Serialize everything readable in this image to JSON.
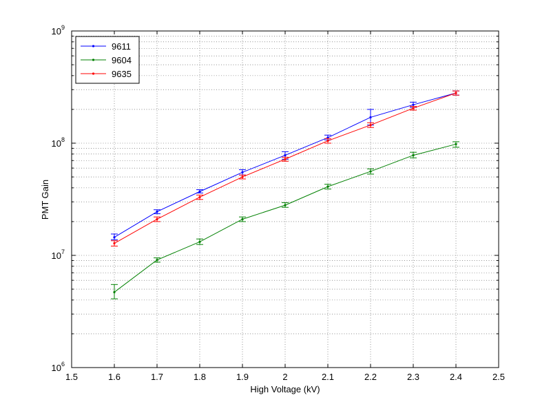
{
  "chart_data": {
    "type": "line",
    "xlabel": "High Voltage (kV)",
    "ylabel": "PMT Gain",
    "xlim": [
      1.5,
      2.5
    ],
    "ylim": [
      1000000,
      1000000000
    ],
    "y_scale": "log",
    "x_ticks": [
      "1.5",
      "1.6",
      "1.7",
      "1.8",
      "1.9",
      "2",
      "2.1",
      "2.2",
      "2.3",
      "2.4",
      "2.5"
    ],
    "y_ticks": [
      {
        "base": "10",
        "exp": "6"
      },
      {
        "base": "10",
        "exp": "7"
      },
      {
        "base": "10",
        "exp": "8"
      },
      {
        "base": "10",
        "exp": "9"
      }
    ],
    "grid": true,
    "legend_position": "top-left",
    "x": [
      1.6,
      1.7,
      1.8,
      1.9,
      2.0,
      2.1,
      2.2,
      2.3,
      2.4
    ],
    "series": [
      {
        "name": "9611",
        "color": "#0000ff",
        "values": [
          14500000,
          24500000,
          37000000,
          55000000,
          78000000,
          112000000,
          170000000,
          220000000,
          280000000
        ],
        "err_high": [
          15500000,
          25500000,
          38500000,
          58000000,
          84000000,
          118000000,
          200000000,
          232000000,
          292000000
        ],
        "err_low": [
          13800000,
          23500000,
          36000000,
          52000000,
          72000000,
          107000000,
          145000000,
          208000000,
          268000000
        ]
      },
      {
        "name": "9604",
        "color": "#008000",
        "values": [
          4700000,
          9100000,
          13200000,
          21000000,
          28000000,
          41000000,
          56000000,
          78000000,
          98000000
        ],
        "err_high": [
          5500000,
          9500000,
          14000000,
          22000000,
          29500000,
          43000000,
          59000000,
          83000000,
          103000000
        ],
        "err_low": [
          4100000,
          8700000,
          12500000,
          20000000,
          26800000,
          39000000,
          53000000,
          74000000,
          92000000
        ]
      },
      {
        "name": "9635",
        "color": "#ff0000",
        "values": [
          12800000,
          21000000,
          33000000,
          50000000,
          72000000,
          105000000,
          145000000,
          205000000,
          280000000
        ],
        "err_high": [
          13500000,
          22000000,
          34500000,
          52000000,
          75000000,
          110000000,
          152000000,
          213000000,
          292000000
        ],
        "err_low": [
          12100000,
          20000000,
          31500000,
          48000000,
          69000000,
          100000000,
          138000000,
          197000000,
          268000000
        ]
      }
    ]
  }
}
